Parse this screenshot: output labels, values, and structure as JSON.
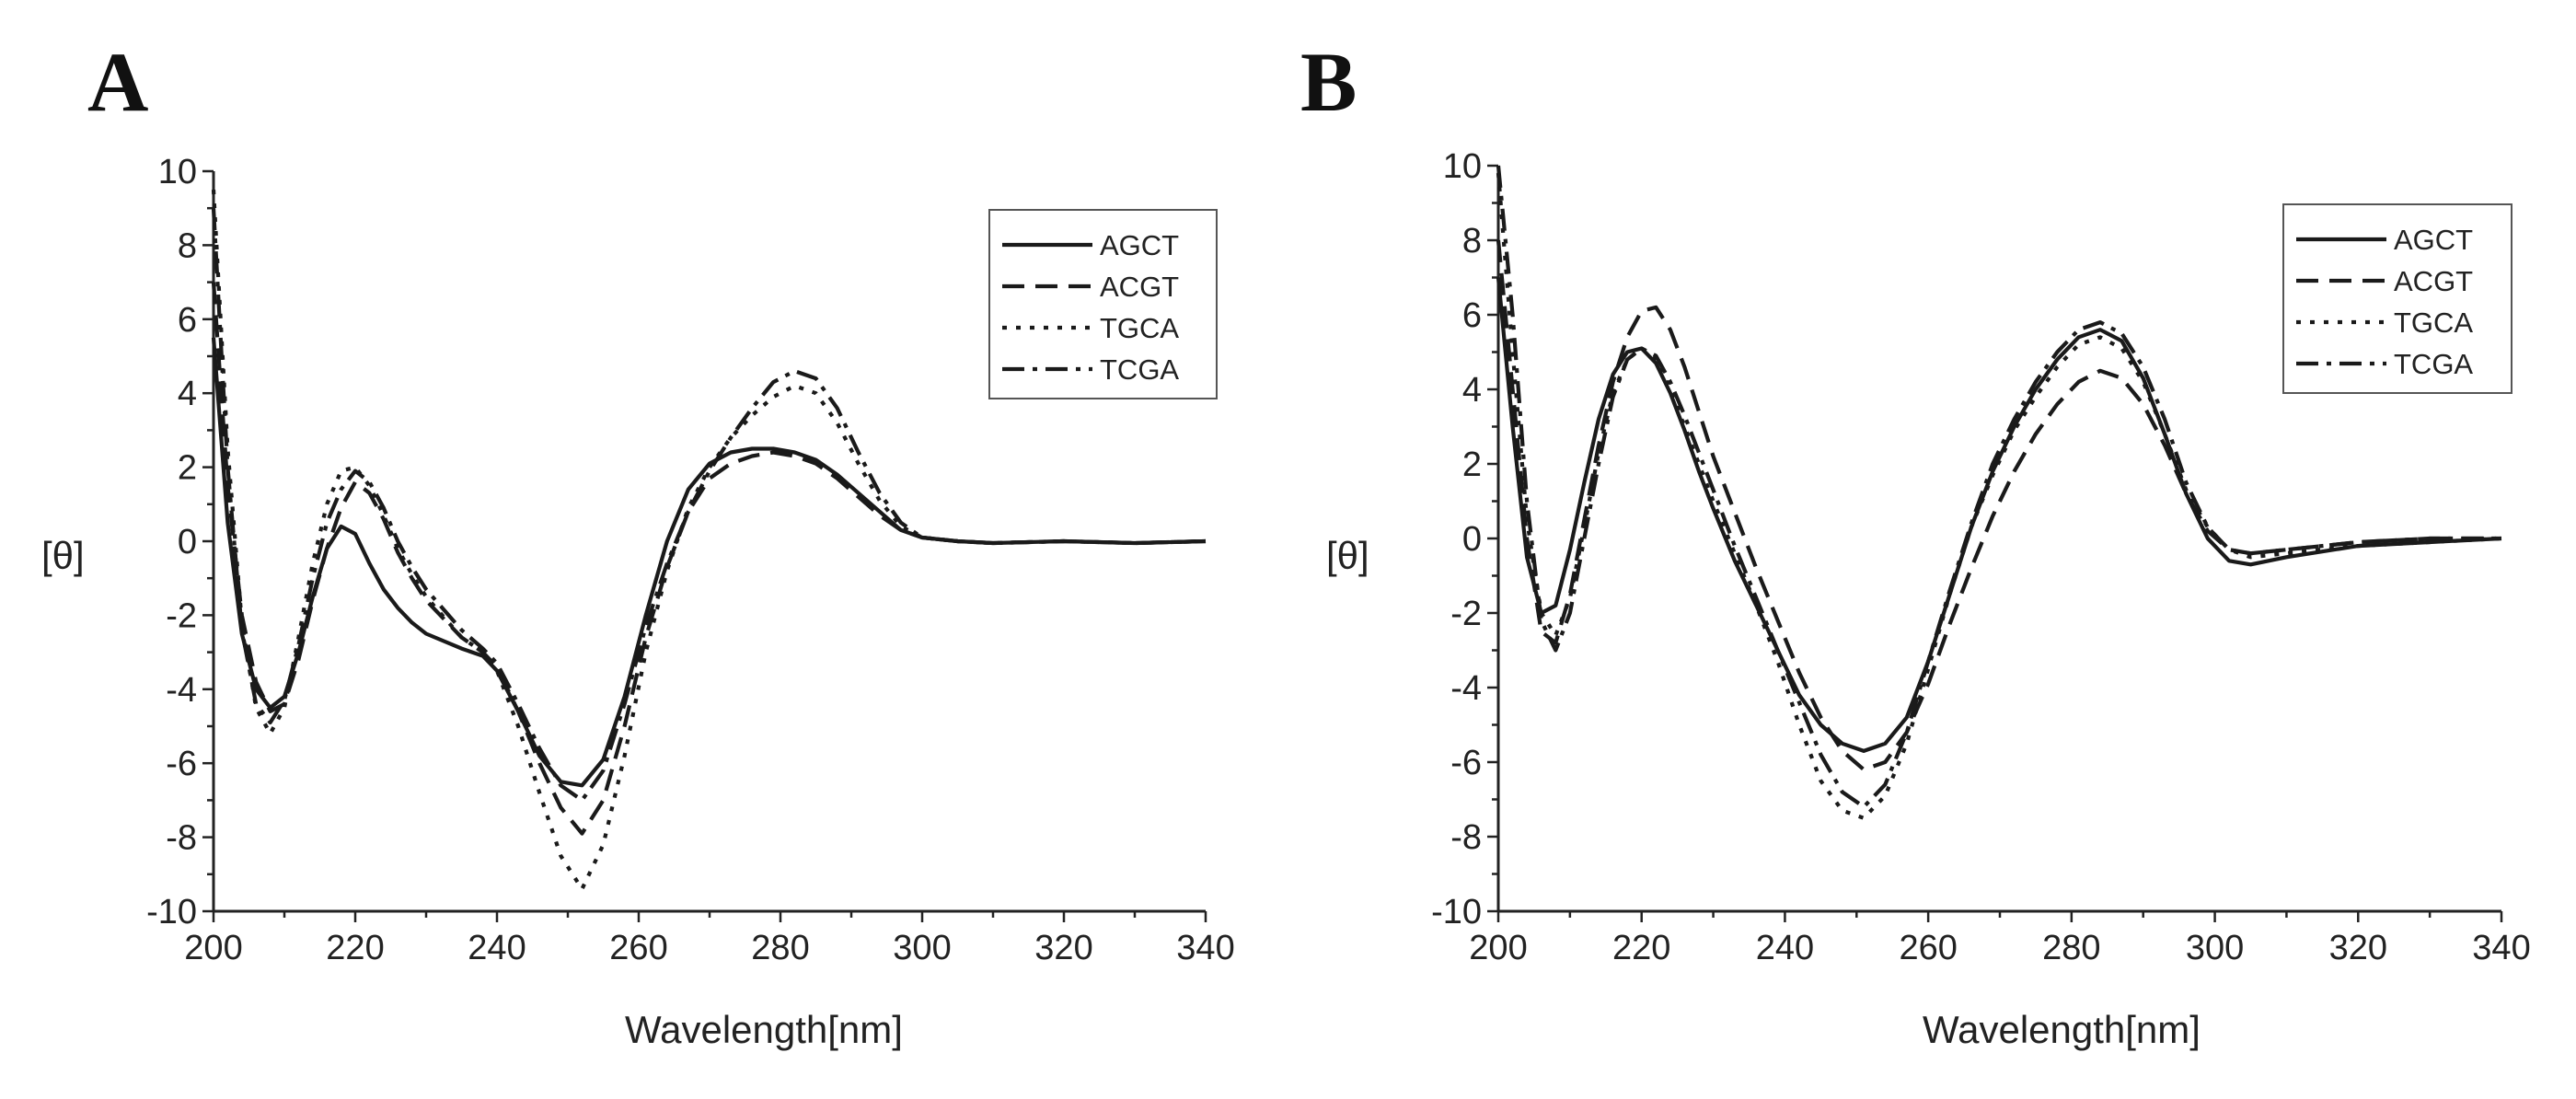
{
  "chart_data": [
    {
      "type": "line",
      "panel_label": "A",
      "xlabel": "Wavelength[nm]",
      "ylabel": "[θ]",
      "xlim": [
        200,
        340
      ],
      "ylim": [
        -10,
        10
      ],
      "x_ticks": [
        "200",
        "220",
        "240",
        "260",
        "280",
        "300",
        "320",
        "340"
      ],
      "y_ticks": [
        "10",
        "8",
        "6",
        "4",
        "2",
        "0",
        "-2",
        "-4",
        "-6",
        "-8",
        "-10"
      ],
      "legend_position": "top-right",
      "series": [
        {
          "name": "AGCT",
          "style": "solid",
          "x": [
            200,
            202,
            204,
            206,
            208,
            210,
            212,
            214,
            216,
            218,
            220,
            222,
            224,
            226,
            228,
            230,
            235,
            238,
            240,
            243,
            246,
            249,
            252,
            255,
            258,
            261,
            264,
            267,
            270,
            273,
            276,
            279,
            282,
            285,
            288,
            291,
            294,
            297,
            300,
            305,
            310,
            320,
            330,
            340
          ],
          "y": [
            5.5,
            0.5,
            -2.5,
            -4.0,
            -4.5,
            -4.2,
            -3.0,
            -1.5,
            -0.2,
            0.4,
            0.2,
            -0.6,
            -1.3,
            -1.8,
            -2.2,
            -2.5,
            -2.9,
            -3.1,
            -3.5,
            -4.6,
            -5.8,
            -6.5,
            -6.6,
            -5.9,
            -4.2,
            -2.0,
            0.0,
            1.4,
            2.1,
            2.4,
            2.5,
            2.5,
            2.4,
            2.2,
            1.8,
            1.3,
            0.8,
            0.3,
            0.1,
            0.0,
            -0.05,
            0.0,
            -0.05,
            0.0
          ]
        },
        {
          "name": "ACGT",
          "style": "dashed",
          "x": [
            200,
            202,
            204,
            206,
            208,
            210,
            212,
            214,
            216,
            218,
            220,
            222,
            224,
            226,
            228,
            230,
            235,
            238,
            240,
            243,
            246,
            249,
            252,
            255,
            258,
            261,
            264,
            267,
            270,
            273,
            276,
            279,
            282,
            285,
            288,
            291,
            294,
            297,
            300,
            305,
            310,
            320,
            330,
            340
          ],
          "y": [
            7.0,
            1.5,
            -2.0,
            -3.8,
            -4.6,
            -4.4,
            -3.2,
            -1.6,
            -0.2,
            0.9,
            1.6,
            1.3,
            0.6,
            -0.3,
            -1.0,
            -1.6,
            -2.6,
            -3.0,
            -3.4,
            -4.6,
            -6.0,
            -7.2,
            -7.9,
            -7.0,
            -5.0,
            -2.6,
            -0.7,
            0.8,
            1.7,
            2.1,
            2.3,
            2.4,
            2.3,
            2.1,
            1.7,
            1.2,
            0.7,
            0.3,
            0.1,
            0.0,
            -0.05,
            0.0,
            -0.05,
            0.0
          ]
        },
        {
          "name": "TGCA",
          "style": "dotted",
          "x": [
            200,
            202,
            204,
            206,
            208,
            210,
            212,
            214,
            216,
            218,
            220,
            222,
            224,
            226,
            228,
            230,
            235,
            238,
            240,
            243,
            246,
            249,
            252,
            255,
            258,
            261,
            264,
            267,
            270,
            273,
            276,
            279,
            282,
            285,
            288,
            291,
            294,
            297,
            300,
            305,
            310,
            320,
            330,
            340
          ],
          "y": [
            9.5,
            2.5,
            -2.2,
            -4.5,
            -5.2,
            -4.5,
            -2.6,
            -0.6,
            1.0,
            1.9,
            2.0,
            1.5,
            0.7,
            -0.2,
            -0.9,
            -1.5,
            -2.6,
            -3.0,
            -3.5,
            -5.0,
            -6.8,
            -8.5,
            -9.4,
            -8.2,
            -5.8,
            -3.0,
            -0.8,
            0.9,
            2.0,
            2.8,
            3.4,
            3.9,
            4.2,
            4.0,
            3.2,
            2.1,
            1.1,
            0.4,
            0.1,
            0.0,
            -0.05,
            0.0,
            -0.05,
            0.0
          ]
        },
        {
          "name": "TCGA",
          "style": "dashdot",
          "x": [
            200,
            202,
            204,
            206,
            208,
            210,
            212,
            214,
            216,
            218,
            220,
            222,
            224,
            226,
            228,
            230,
            235,
            238,
            240,
            243,
            246,
            249,
            252,
            255,
            258,
            261,
            264,
            267,
            270,
            273,
            276,
            279,
            282,
            285,
            288,
            291,
            294,
            297,
            300,
            305,
            310,
            320,
            330,
            340
          ],
          "y": [
            9.0,
            2.0,
            -2.4,
            -4.4,
            -4.9,
            -4.3,
            -2.8,
            -1.0,
            0.5,
            1.4,
            1.9,
            1.6,
            0.9,
            0.0,
            -0.7,
            -1.3,
            -2.4,
            -2.9,
            -3.3,
            -4.4,
            -5.6,
            -6.6,
            -7.0,
            -6.2,
            -4.4,
            -2.3,
            -0.6,
            0.8,
            1.9,
            2.8,
            3.6,
            4.3,
            4.6,
            4.4,
            3.6,
            2.4,
            1.3,
            0.5,
            0.1,
            0.0,
            -0.05,
            0.0,
            -0.05,
            0.0
          ]
        }
      ]
    },
    {
      "type": "line",
      "panel_label": "B",
      "xlabel": "Wavelength[nm]",
      "ylabel": "[θ]",
      "xlim": [
        200,
        340
      ],
      "ylim": [
        -10,
        10
      ],
      "x_ticks": [
        "200",
        "220",
        "240",
        "260",
        "280",
        "300",
        "320",
        "340"
      ],
      "y_ticks": [
        "10",
        "8",
        "6",
        "4",
        "2",
        "0",
        "-2",
        "-4",
        "-6",
        "-8",
        "-10"
      ],
      "legend_position": "top-right",
      "series": [
        {
          "name": "AGCT",
          "style": "solid",
          "x": [
            200,
            202,
            204,
            206,
            208,
            210,
            212,
            214,
            216,
            218,
            220,
            222,
            224,
            226,
            228,
            230,
            233,
            236,
            239,
            242,
            245,
            248,
            251,
            254,
            257,
            260,
            263,
            266,
            269,
            272,
            275,
            278,
            281,
            284,
            287,
            290,
            293,
            296,
            299,
            302,
            305,
            310,
            320,
            330,
            340
          ],
          "y": [
            7.0,
            3.0,
            -0.5,
            -2.0,
            -1.8,
            -0.3,
            1.5,
            3.2,
            4.4,
            5.0,
            5.1,
            4.7,
            3.9,
            2.9,
            1.8,
            0.8,
            -0.6,
            -1.8,
            -3.0,
            -4.2,
            -5.0,
            -5.5,
            -5.7,
            -5.5,
            -4.8,
            -3.3,
            -1.5,
            0.3,
            1.8,
            3.0,
            4.0,
            4.8,
            5.4,
            5.6,
            5.3,
            4.3,
            2.8,
            1.2,
            0.0,
            -0.6,
            -0.7,
            -0.5,
            -0.2,
            -0.1,
            0.0
          ]
        },
        {
          "name": "ACGT",
          "style": "dashed",
          "x": [
            200,
            202,
            204,
            206,
            208,
            210,
            212,
            214,
            216,
            218,
            220,
            222,
            224,
            226,
            228,
            230,
            233,
            236,
            239,
            242,
            245,
            248,
            251,
            254,
            257,
            260,
            263,
            266,
            269,
            272,
            275,
            278,
            281,
            284,
            287,
            290,
            293,
            296,
            299,
            302,
            305,
            310,
            320,
            330,
            340
          ],
          "y": [
            8.0,
            4.0,
            0.0,
            -2.5,
            -2.8,
            -1.5,
            0.5,
            2.5,
            4.2,
            5.4,
            6.1,
            6.2,
            5.6,
            4.6,
            3.4,
            2.2,
            0.7,
            -0.8,
            -2.2,
            -3.6,
            -4.8,
            -5.7,
            -6.2,
            -6.0,
            -5.2,
            -3.9,
            -2.3,
            -0.8,
            0.6,
            1.8,
            2.8,
            3.6,
            4.2,
            4.5,
            4.3,
            3.6,
            2.5,
            1.2,
            0.2,
            -0.3,
            -0.4,
            -0.3,
            -0.1,
            0.0,
            0.0
          ]
        },
        {
          "name": "TGCA",
          "style": "dotted",
          "x": [
            200,
            202,
            204,
            206,
            208,
            210,
            212,
            214,
            216,
            218,
            220,
            222,
            224,
            226,
            228,
            230,
            233,
            236,
            239,
            242,
            245,
            248,
            251,
            254,
            257,
            260,
            263,
            266,
            269,
            272,
            275,
            278,
            281,
            284,
            287,
            290,
            293,
            296,
            299,
            302,
            305,
            310,
            320,
            330,
            340
          ],
          "y": [
            9.8,
            5.0,
            0.5,
            -2.0,
            -2.6,
            -1.6,
            0.3,
            2.3,
            3.9,
            4.8,
            5.1,
            4.8,
            4.0,
            3.0,
            2.0,
            1.0,
            -0.4,
            -1.8,
            -3.3,
            -5.0,
            -6.5,
            -7.3,
            -7.5,
            -6.9,
            -5.5,
            -3.5,
            -1.5,
            0.3,
            1.7,
            2.9,
            3.8,
            4.6,
            5.2,
            5.4,
            5.1,
            4.2,
            2.8,
            1.3,
            0.3,
            -0.3,
            -0.5,
            -0.4,
            -0.2,
            -0.1,
            0.0
          ]
        },
        {
          "name": "TCGA",
          "style": "dashdot",
          "x": [
            200,
            202,
            204,
            206,
            208,
            210,
            212,
            214,
            216,
            218,
            220,
            222,
            224,
            226,
            228,
            230,
            233,
            236,
            239,
            242,
            245,
            248,
            251,
            254,
            257,
            260,
            263,
            266,
            269,
            272,
            275,
            278,
            281,
            284,
            287,
            290,
            293,
            296,
            299,
            302,
            305,
            310,
            320,
            330,
            340
          ],
          "y": [
            10.0,
            6.0,
            1.0,
            -2.2,
            -3.0,
            -2.0,
            0.0,
            2.0,
            3.8,
            4.8,
            5.1,
            4.9,
            4.2,
            3.3,
            2.3,
            1.3,
            -0.2,
            -1.6,
            -3.0,
            -4.4,
            -5.8,
            -6.8,
            -7.2,
            -6.6,
            -5.2,
            -3.3,
            -1.4,
            0.4,
            2.0,
            3.2,
            4.2,
            5.0,
            5.6,
            5.8,
            5.5,
            4.6,
            3.2,
            1.5,
            0.3,
            -0.3,
            -0.4,
            -0.3,
            -0.1,
            0.0,
            0.0
          ]
        }
      ]
    }
  ]
}
